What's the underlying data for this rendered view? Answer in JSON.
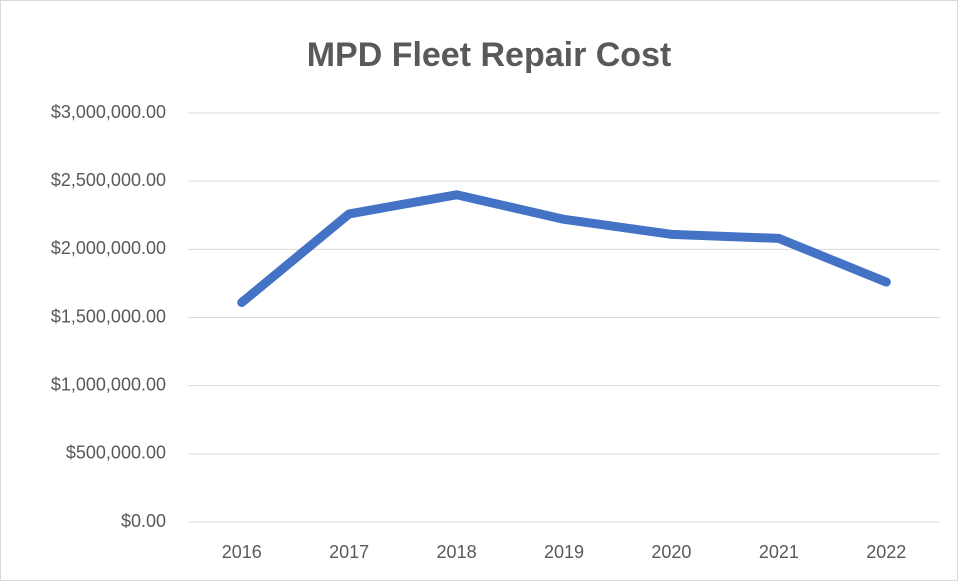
{
  "chart_data": {
    "type": "line",
    "title": "MPD Fleet Repair Cost",
    "categories": [
      "2016",
      "2017",
      "2018",
      "2019",
      "2020",
      "2021",
      "2022"
    ],
    "series": [
      {
        "name": "Repair Cost",
        "color": "#4472c4",
        "values": [
          1610000,
          2260000,
          2400000,
          2220000,
          2110000,
          2080000,
          1760000
        ]
      }
    ],
    "ylim": [
      0,
      3000000
    ],
    "yticks": [
      {
        "value": 0,
        "label": "$0.00"
      },
      {
        "value": 500000,
        "label": "$500,000.00"
      },
      {
        "value": 1000000,
        "label": "$1,000,000.00"
      },
      {
        "value": 1500000,
        "label": "$1,500,000.00"
      },
      {
        "value": 2000000,
        "label": "$2,000,000.00"
      },
      {
        "value": 2500000,
        "label": "$2,500,000.00"
      },
      {
        "value": 3000000,
        "label": "$3,000,000.00"
      }
    ],
    "grid": true
  }
}
